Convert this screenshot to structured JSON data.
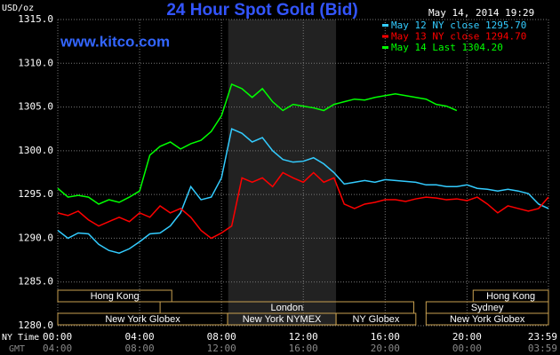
{
  "chart_data": {
    "type": "line",
    "title": "24 Hour Spot Gold (Bid)",
    "website": "www.kitco.com",
    "timestamp": "May 14, 2014 19:29",
    "ylabel": "USD/oz",
    "xlabel": "NY Time",
    "x2label": "GMT",
    "x": [
      0,
      0.5,
      1,
      1.5,
      2,
      2.5,
      3,
      3.5,
      4,
      4.5,
      5,
      5.5,
      6,
      6.5,
      7,
      7.5,
      8,
      8.5,
      9,
      9.5,
      10,
      10.5,
      11,
      11.5,
      12,
      12.5,
      13,
      13.5,
      14,
      14.5,
      15,
      15.5,
      16,
      16.5,
      17,
      17.5,
      18,
      18.5,
      19,
      19.5,
      20,
      20.5,
      21,
      21.5,
      22,
      22.5,
      23,
      23.5,
      23.98
    ],
    "series": [
      {
        "name": "May 12 NY close 1295.70",
        "color": "#33ccff",
        "values": [
          1290.9,
          1290.0,
          1290.6,
          1290.5,
          1289.3,
          1288.6,
          1288.3,
          1288.8,
          1289.6,
          1290.5,
          1290.6,
          1291.4,
          1292.9,
          1295.9,
          1294.4,
          1294.7,
          1296.9,
          1302.5,
          1302.0,
          1301.0,
          1301.5,
          1300.0,
          1299.0,
          1298.7,
          1298.8,
          1299.2,
          1298.5,
          1297.5,
          1296.2,
          1296.4,
          1296.6,
          1296.4,
          1296.7,
          1296.6,
          1296.5,
          1296.4,
          1296.1,
          1296.1,
          1295.9,
          1295.9,
          1296.1,
          1295.7,
          1295.6,
          1295.4,
          1295.6,
          1295.4,
          1295.1,
          1293.9,
          1293.4
        ]
      },
      {
        "name": "May 13 NY close 1294.70",
        "color": "#ff0000",
        "values": [
          1292.9,
          1292.6,
          1293.1,
          1292.1,
          1291.4,
          1291.9,
          1292.4,
          1291.9,
          1292.9,
          1292.4,
          1293.7,
          1292.9,
          1293.4,
          1292.4,
          1290.9,
          1290.0,
          1290.6,
          1291.4,
          1296.9,
          1296.4,
          1296.9,
          1295.9,
          1297.5,
          1296.9,
          1296.4,
          1297.5,
          1296.4,
          1296.9,
          1293.9,
          1293.4,
          1293.9,
          1294.1,
          1294.4,
          1294.4,
          1294.2,
          1294.5,
          1294.7,
          1294.6,
          1294.4,
          1294.5,
          1294.3,
          1294.7,
          1293.9,
          1292.9,
          1293.7,
          1293.4,
          1293.1,
          1293.4,
          1294.7
        ]
      },
      {
        "name": "May 14 Last 1304.20",
        "color": "#00ff00",
        "values": [
          1295.7,
          1294.7,
          1294.9,
          1294.7,
          1293.9,
          1294.4,
          1294.1,
          1294.7,
          1295.4,
          1299.5,
          1300.5,
          1301.0,
          1300.2,
          1300.8,
          1301.2,
          1302.2,
          1304.0,
          1307.6,
          1307.1,
          1306.1,
          1307.1,
          1305.6,
          1304.6,
          1305.3,
          1305.1,
          1304.9,
          1304.6,
          1305.3,
          1305.6,
          1305.9,
          1305.8,
          1306.1,
          1306.3,
          1306.5,
          1306.3,
          1306.1,
          1305.9,
          1305.3,
          1305.1,
          1304.6,
          null,
          null,
          null,
          null,
          null,
          null,
          null,
          null,
          null
        ]
      }
    ],
    "xlim": [
      0,
      23.98
    ],
    "xticks": [
      {
        "value": 0,
        "label": "00:00"
      },
      {
        "value": 4,
        "label": "04:00"
      },
      {
        "value": 8,
        "label": "08:00"
      },
      {
        "value": 12,
        "label": "12:00"
      },
      {
        "value": 16,
        "label": "16:00"
      },
      {
        "value": 20,
        "label": "20:00"
      },
      {
        "value": 23.98,
        "label": "23:59"
      }
    ],
    "gmt_labels": [
      "04:00",
      "08:00",
      "12:00",
      "16:00",
      "20:00",
      "00:00",
      "03:59"
    ],
    "ylim": [
      1280,
      1315
    ],
    "yticks": [
      {
        "value": 1280,
        "label": "1280.0"
      },
      {
        "value": 1285,
        "label": "1285.0"
      },
      {
        "value": 1290,
        "label": "1290.0"
      },
      {
        "value": 1295,
        "label": "1295.0"
      },
      {
        "value": 1300,
        "label": "1300.0"
      },
      {
        "value": 1305,
        "label": "1305.0"
      },
      {
        "value": 1310,
        "label": "1310.0"
      },
      {
        "value": 1315,
        "label": "1315.0"
      }
    ],
    "grid": true,
    "highlight_x": [
      8.33,
      13.6
    ],
    "sessions": [
      {
        "label": "Hong Kong",
        "row": 0,
        "start": 0,
        "end": 5.57
      },
      {
        "label": "Hong Kong",
        "row": 0,
        "start": 20.3,
        "end": 23.98
      },
      {
        "label": "London",
        "row": 1,
        "start": 5,
        "end": 17.4
      },
      {
        "label": "Sydney",
        "row": 1,
        "start": 18,
        "end": 23.98
      },
      {
        "label": "New York Globex",
        "row": 2,
        "start": 0,
        "end": 8.3
      },
      {
        "label": "New York NYMEX",
        "row": 2,
        "start": 8.3,
        "end": 13.6
      },
      {
        "label": "NY Globex",
        "row": 2,
        "start": 13.6,
        "end": 17.5
      },
      {
        "label": "New York Globex",
        "row": 2,
        "start": 18,
        "end": 23.98
      }
    ]
  }
}
